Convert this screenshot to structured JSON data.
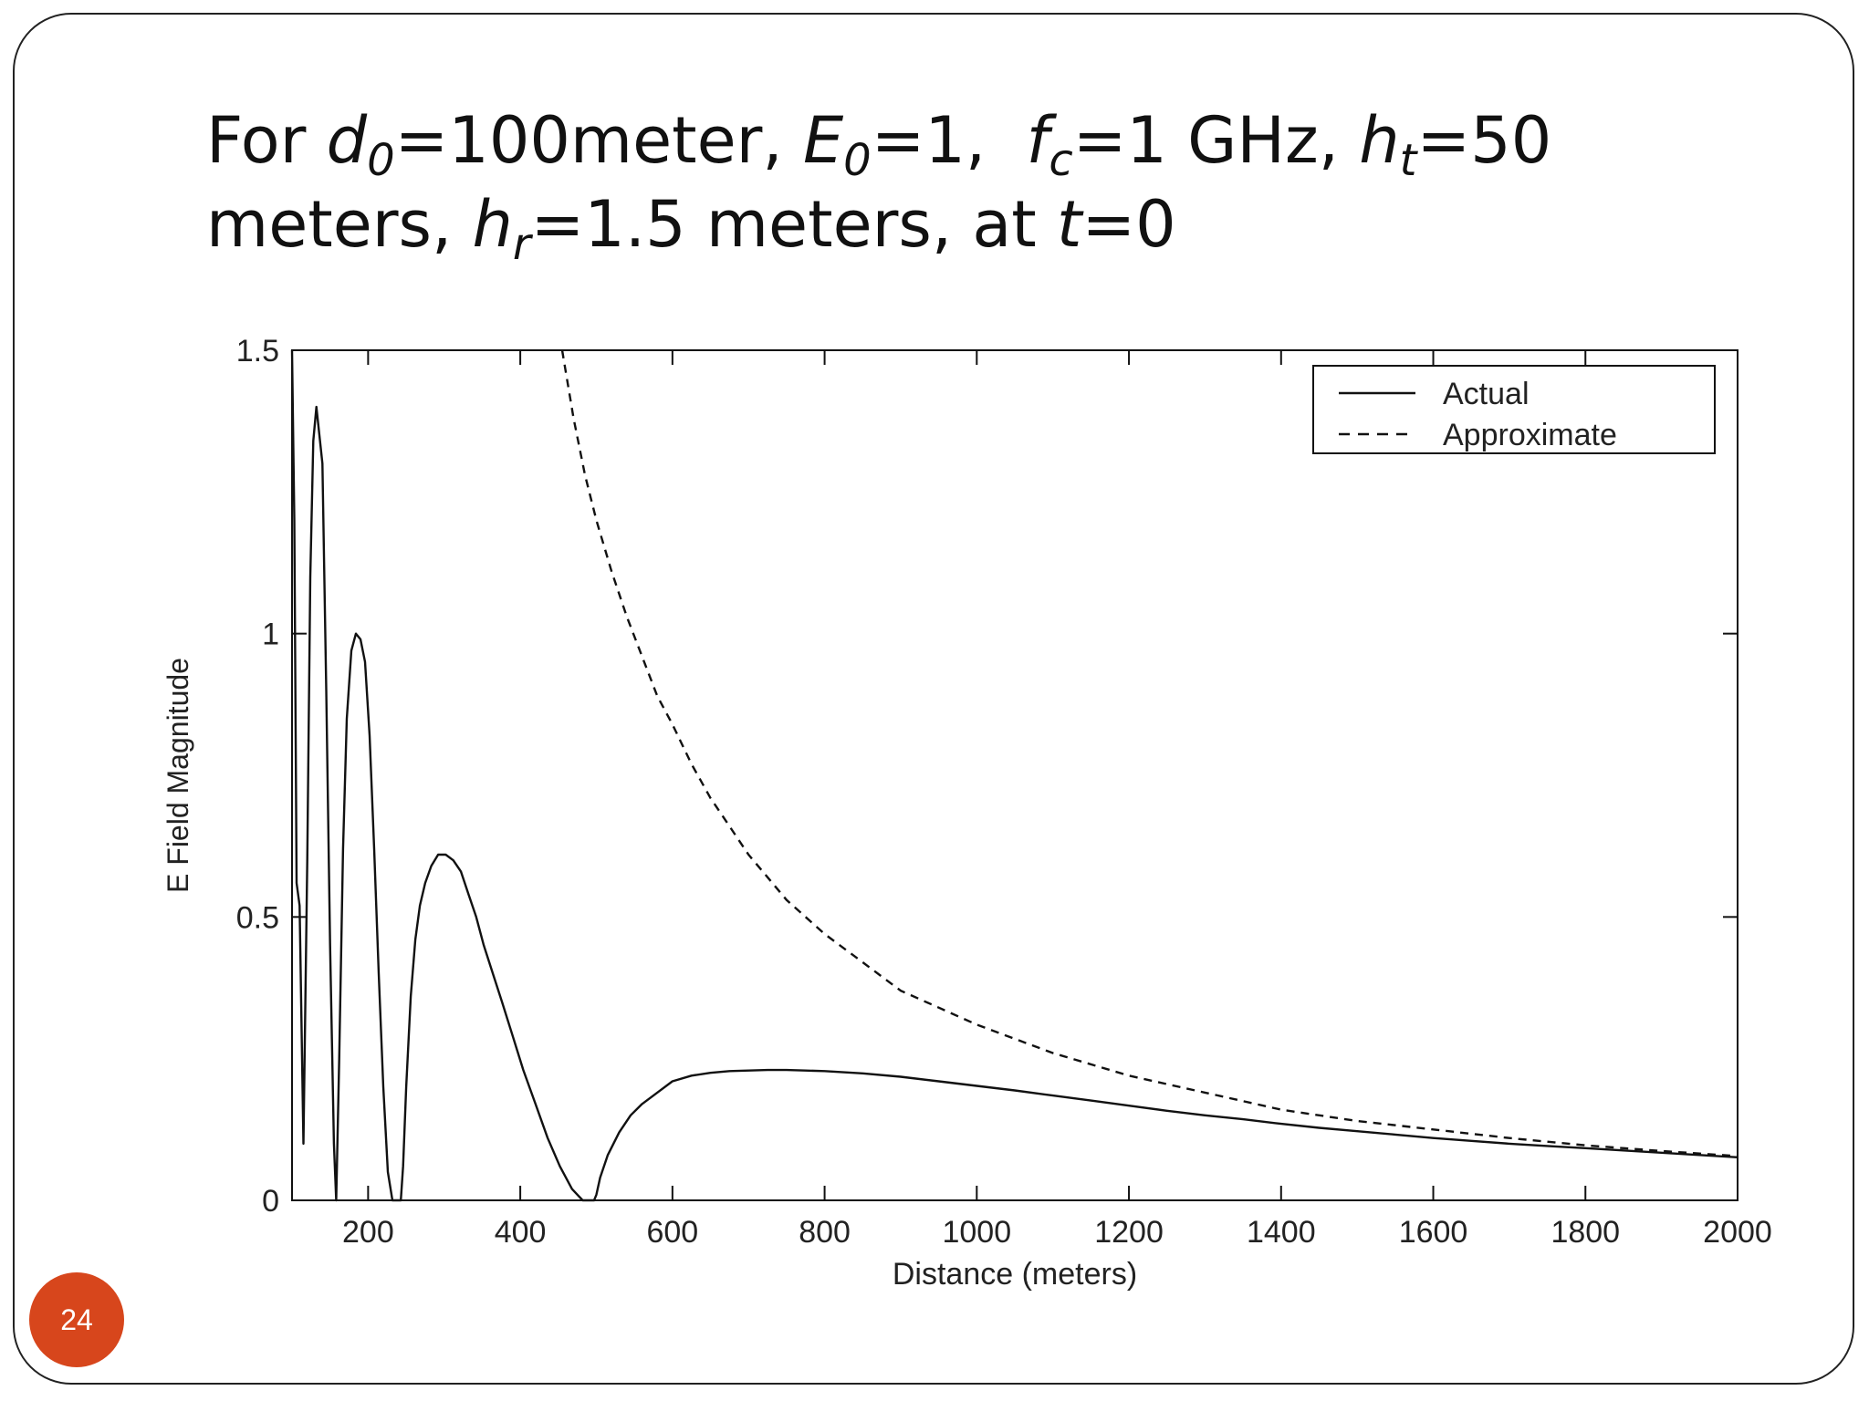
{
  "slide": {
    "title_parts": {
      "p1": "For ",
      "d": "d",
      "d_sub": "0",
      "p2": "=100meter, ",
      "e": "E",
      "e_sub": "0",
      "p3": "=1,  ",
      "f": "f",
      "f_sub": "c",
      "p4": "=1 GHz, ",
      "h": "h",
      "h_sub": "t",
      "p5": "=50",
      "p6": "meters, ",
      "hr": "h",
      "hr_sub": "r",
      "p7": "=1.5 meters, at ",
      "t": "t",
      "p8": "=0"
    },
    "page_number": "24",
    "accent_color": "#d7461c"
  },
  "chart_data": {
    "type": "line",
    "title": "",
    "xlabel": "Distance (meters)",
    "ylabel": "E Field Magnitude",
    "xlim": [
      100,
      2000
    ],
    "ylim": [
      0,
      1.5
    ],
    "x_ticks": [
      200,
      400,
      600,
      800,
      1000,
      1200,
      1400,
      1600,
      1800,
      2000
    ],
    "y_ticks": [
      0,
      0.5,
      1,
      1.5
    ],
    "x_tick_labels": [
      "200",
      "400",
      "600",
      "800",
      "1000",
      "1200",
      "1400",
      "1600",
      "1800",
      "2000"
    ],
    "y_tick_labels": [
      "0",
      "0.5",
      "1",
      "1.5"
    ],
    "grid": false,
    "legend_position": "top-right",
    "series": [
      {
        "name": "Actual",
        "style": "solid",
        "x": [
          100,
          103,
          106,
          110,
          115,
          120,
          124,
          128,
          132,
          136,
          140,
          145,
          150,
          155,
          158,
          162,
          167,
          172,
          178,
          184,
          190,
          196,
          202,
          208,
          214,
          220,
          226,
          232,
          238,
          243,
          246,
          250,
          256,
          262,
          268,
          275,
          283,
          292,
          302,
          312,
          322,
          332,
          342,
          352,
          364,
          376,
          390,
          404,
          420,
          436,
          452,
          468,
          482,
          492,
          497,
          500,
          505,
          515,
          530,
          545,
          560,
          580,
          600,
          625,
          650,
          675,
          700,
          725,
          750,
          775,
          800,
          850,
          900,
          950,
          1000,
          1050,
          1100,
          1150,
          1200,
          1250,
          1300,
          1350,
          1400,
          1450,
          1500,
          1550,
          1600,
          1650,
          1700,
          1750,
          1800,
          1850,
          1900,
          1950,
          2000
        ],
        "y": [
          1.5,
          1.2,
          0.56,
          0.52,
          0.1,
          0.6,
          1.1,
          1.34,
          1.4,
          1.35,
          1.3,
          0.9,
          0.45,
          0.1,
          0.0,
          0.25,
          0.62,
          0.85,
          0.97,
          1.0,
          0.99,
          0.95,
          0.82,
          0.62,
          0.4,
          0.2,
          0.05,
          0.0,
          0.0,
          0.0,
          0.06,
          0.2,
          0.36,
          0.46,
          0.52,
          0.56,
          0.59,
          0.61,
          0.61,
          0.6,
          0.58,
          0.54,
          0.5,
          0.45,
          0.4,
          0.35,
          0.29,
          0.23,
          0.17,
          0.11,
          0.06,
          0.02,
          0.0,
          0.0,
          0.0,
          0.01,
          0.04,
          0.08,
          0.12,
          0.15,
          0.17,
          0.19,
          0.21,
          0.22,
          0.225,
          0.228,
          0.229,
          0.23,
          0.23,
          0.229,
          0.228,
          0.224,
          0.218,
          0.21,
          0.202,
          0.194,
          0.185,
          0.176,
          0.167,
          0.158,
          0.15,
          0.143,
          0.135,
          0.128,
          0.122,
          0.116,
          0.11,
          0.105,
          0.1,
          0.096,
          0.092,
          0.088,
          0.084,
          0.08,
          0.076
        ]
      },
      {
        "name": "Approximate",
        "style": "dashed",
        "x": [
          455,
          470,
          485,
          500,
          520,
          540,
          560,
          580,
          600,
          625,
          650,
          675,
          700,
          725,
          750,
          775,
          800,
          850,
          900,
          950,
          1000,
          1100,
          1200,
          1300,
          1400,
          1500,
          1600,
          1700,
          1800,
          1900,
          2000
        ],
        "y": [
          1.5,
          1.38,
          1.28,
          1.2,
          1.11,
          1.03,
          0.96,
          0.89,
          0.84,
          0.77,
          0.71,
          0.66,
          0.61,
          0.57,
          0.53,
          0.5,
          0.47,
          0.42,
          0.37,
          0.34,
          0.31,
          0.26,
          0.22,
          0.19,
          0.16,
          0.14,
          0.125,
          0.11,
          0.097,
          0.087,
          0.078
        ]
      }
    ]
  }
}
